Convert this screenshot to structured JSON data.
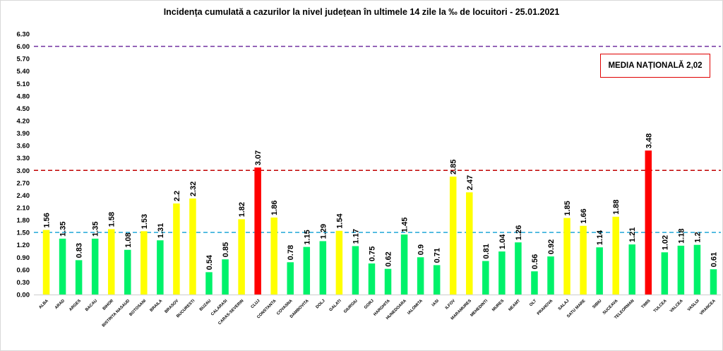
{
  "chart_data": {
    "type": "bar",
    "title": "Incidența cumulată a cazurilor la nivel județean în ultimele 14 zile la ‰ de locuitori - 25.01.2021",
    "xlabel": "",
    "ylabel": "",
    "ylim": [
      0,
      6.3
    ],
    "yticks": [
      "0.00",
      "0.30",
      "0.60",
      "0.90",
      "1.20",
      "1.50",
      "1.80",
      "2.10",
      "2.40",
      "2.70",
      "3.00",
      "3.30",
      "3.60",
      "3.90",
      "4.20",
      "4.50",
      "4.80",
      "5.10",
      "5.40",
      "5.70",
      "6.00",
      "6.30"
    ],
    "grid": false,
    "categories": [
      "ALBA",
      "ARAD",
      "ARGES",
      "BACAU",
      "BIHOR",
      "BISTRITA NASAUD",
      "BOTOSANI",
      "BRAILA",
      "BRASOV",
      "BUCURESTI",
      "BUZAU",
      "CALARASI",
      "CARAS-SEVERIN",
      "CLUJ",
      "CONSTANTA",
      "COVASNA",
      "DAMBOVITA",
      "DOLJ",
      "GALATI",
      "GIURGIU",
      "GORJ",
      "HARGHITA",
      "HUNEDOARA",
      "IALOMITA",
      "IASI",
      "ILFOV",
      "MARAMURES",
      "MEHEDINTI",
      "MURES",
      "NEAMT",
      "OLT",
      "PRAHOVA",
      "SALAJ",
      "SATU MARE",
      "SIBIU",
      "SUCEAVA",
      "TELEORMAN",
      "TIMIS",
      "TULCEA",
      "VALCEA",
      "VASLUI",
      "VRANCEA"
    ],
    "values": [
      1.56,
      1.35,
      0.83,
      1.35,
      1.58,
      1.08,
      1.53,
      1.31,
      2.2,
      2.32,
      0.54,
      0.85,
      1.82,
      3.07,
      1.86,
      0.78,
      1.15,
      1.29,
      1.54,
      1.17,
      0.75,
      0.62,
      1.45,
      0.9,
      0.71,
      2.85,
      2.47,
      0.81,
      1.04,
      1.26,
      0.56,
      0.92,
      1.85,
      1.66,
      1.14,
      1.88,
      1.21,
      3.48,
      1.02,
      1.18,
      1.2,
      0.61
    ],
    "data_labels": [
      "1.56",
      "1.35",
      "0.83",
      "1.35",
      "1.58",
      "1.08",
      "1.53",
      "1.31",
      "2.2",
      "2.32",
      "0.54",
      "0.85",
      "1.82",
      "3.07",
      "1.86",
      "0.78",
      "1.15",
      "1.29",
      "1.54",
      "1.17",
      "0.75",
      "0.62",
      "1.45",
      "0.9",
      "0.71",
      "2.85",
      "2.47",
      "0.81",
      "1.04",
      "1.26",
      "0.56",
      "0.92",
      "1.85",
      "1.66",
      "1.14",
      "1.88",
      "1.21",
      "3.48",
      "1.02",
      "1.18",
      "1.2",
      "0.61"
    ],
    "color_thresholds": {
      "green_below": 1.5,
      "yellow_below": 3.0
    },
    "colors": {
      "green": "#00f26a",
      "yellow": "#ffff00",
      "red": "#ff0000"
    },
    "reference_lines": [
      {
        "value": 6.0,
        "color": "#7030a0",
        "style": "dashed"
      },
      {
        "value": 3.0,
        "color": "#c00000",
        "style": "dashed"
      },
      {
        "value": 1.5,
        "color": "#20a8d8",
        "style": "dashed"
      }
    ],
    "annotation": "MEDIA NAȚIONALĂ  2,02"
  }
}
